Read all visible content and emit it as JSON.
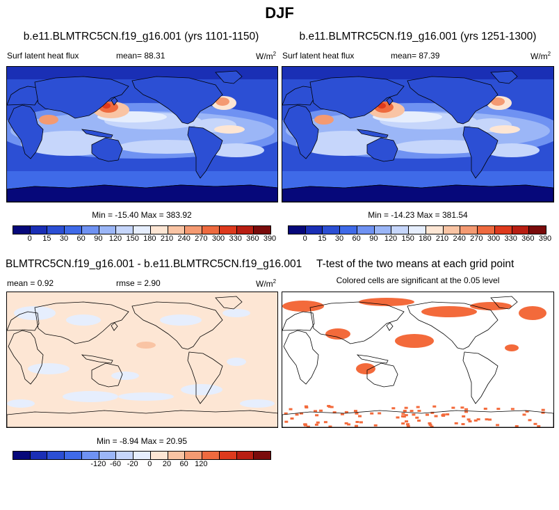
{
  "title": "DJF",
  "panels": {
    "p1": {
      "header": "b.e11.BLMTRC5CN.f19_g16.001 (yrs 1101-1150)",
      "var_label": "Surf latent heat flux",
      "mean": "mean=  88.31",
      "units": "W/m",
      "units_sup": "2",
      "minmax": "Min = -15.40 Max = 383.92"
    },
    "p2": {
      "header": "b.e11.BLMTRC5CN.f19_g16.001 (yrs 1251-1300)",
      "var_label": "Surf latent heat flux",
      "mean": "mean=  87.39",
      "units": "W/m",
      "units_sup": "2",
      "minmax": "Min = -14.23 Max = 381.54"
    },
    "p3": {
      "header": "BLMTRC5CN.f19_g16.001 - b.e11.BLMTRC5CN.f19_g16.001",
      "mean": "mean =   0.92",
      "rmse": "rmse =   2.90",
      "units": "W/m",
      "units_sup": "2",
      "minmax": "Min =  -8.94 Max =  20.95"
    },
    "p4": {
      "header": "T-test of the two means at each grid point",
      "subheader": "Colored cells are significant at the 0.05 level"
    }
  },
  "chart_data": [
    {
      "type": "heatmap",
      "title": "b.e11.BLMTRC5CN.f19_g16.001 (yrs 1101-1150)",
      "field": "Surf latent heat flux",
      "units": "W/m2",
      "mean": 88.31,
      "min": -15.4,
      "max": 383.92,
      "levels": [
        0,
        15,
        30,
        60,
        90,
        120,
        150,
        180,
        210,
        240,
        270,
        300,
        330,
        360,
        390
      ]
    },
    {
      "type": "heatmap",
      "title": "b.e11.BLMTRC5CN.f19_g16.001 (yrs 1251-1300)",
      "field": "Surf latent heat flux",
      "units": "W/m2",
      "mean": 87.39,
      "min": -14.23,
      "max": 381.54,
      "levels": [
        0,
        15,
        30,
        60,
        90,
        120,
        150,
        180,
        210,
        240,
        270,
        300,
        330,
        360,
        390
      ]
    },
    {
      "type": "heatmap",
      "title": "BLMTRC5CN.f19_g16.001 - b.e11.BLMTRC5CN.f19_g16.001",
      "units": "W/m2",
      "mean": 0.92,
      "rmse": 2.9,
      "min": -8.94,
      "max": 20.95,
      "levels": [
        -120,
        -60,
        -20,
        0,
        20,
        60,
        120
      ]
    },
    {
      "type": "heatmap",
      "title": "T-test of the two means at each grid point",
      "subtitle": "Colored cells are significant at the 0.05 level",
      "significance_level": 0.05
    }
  ],
  "colorbars": {
    "abs": {
      "colors": [
        "#06087a",
        "#1a2fb5",
        "#2c4fd4",
        "#3f6ae8",
        "#6f92f2",
        "#9bb6f7",
        "#c6d6fb",
        "#e6eefd",
        "#fde6d4",
        "#f9c4a4",
        "#f49a72",
        "#ee6a3f",
        "#de3a1d",
        "#b81e12",
        "#7a0b0b"
      ],
      "labels": [
        "0",
        "15",
        "30",
        "60",
        "90",
        "120",
        "150",
        "180",
        "210",
        "240",
        "270",
        "300",
        "330",
        "360",
        "390"
      ]
    },
    "diff": {
      "colors": [
        "#06087a",
        "#1a2fb5",
        "#2c4fd4",
        "#3f6ae8",
        "#6f92f2",
        "#9bb6f7",
        "#c6d6fb",
        "#e6eefd",
        "#fde6d4",
        "#f9c4a4",
        "#f49a72",
        "#ee6a3f",
        "#de3a1d",
        "#b81e12",
        "#7a0b0b"
      ],
      "labels": [
        "-120",
        "-60",
        "-20",
        "0",
        "20",
        "60",
        "120"
      ]
    },
    "sig_color": "#f36a3b"
  }
}
